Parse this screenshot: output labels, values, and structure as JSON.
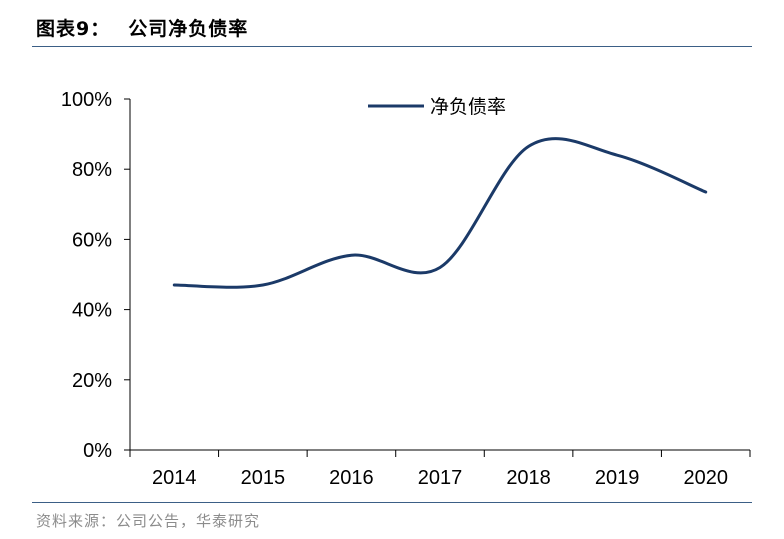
{
  "figure": {
    "label": "图表9：",
    "title": "公司净负债率",
    "source": "资料来源：公司公告，华泰研究"
  },
  "colors": {
    "series": "#1b3a68",
    "rule": "#3b5f86",
    "axis": "#000000"
  },
  "chart_data": {
    "type": "line",
    "title": "公司净负债率",
    "x": [
      "2014",
      "2015",
      "2016",
      "2017",
      "2018",
      "2019",
      "2020"
    ],
    "series": [
      {
        "name": "净负债率",
        "values": [
          47,
          47,
          55.5,
          52,
          86.5,
          84,
          73.5
        ]
      }
    ],
    "ylim": [
      0,
      100
    ],
    "yticks": [
      0,
      20,
      40,
      60,
      80,
      100
    ],
    "ytick_labels": [
      "0%",
      "20%",
      "40%",
      "60%",
      "80%",
      "100%"
    ],
    "xlabel": "",
    "ylabel": "",
    "legend": "top-center",
    "grid": false,
    "smooth": true
  }
}
